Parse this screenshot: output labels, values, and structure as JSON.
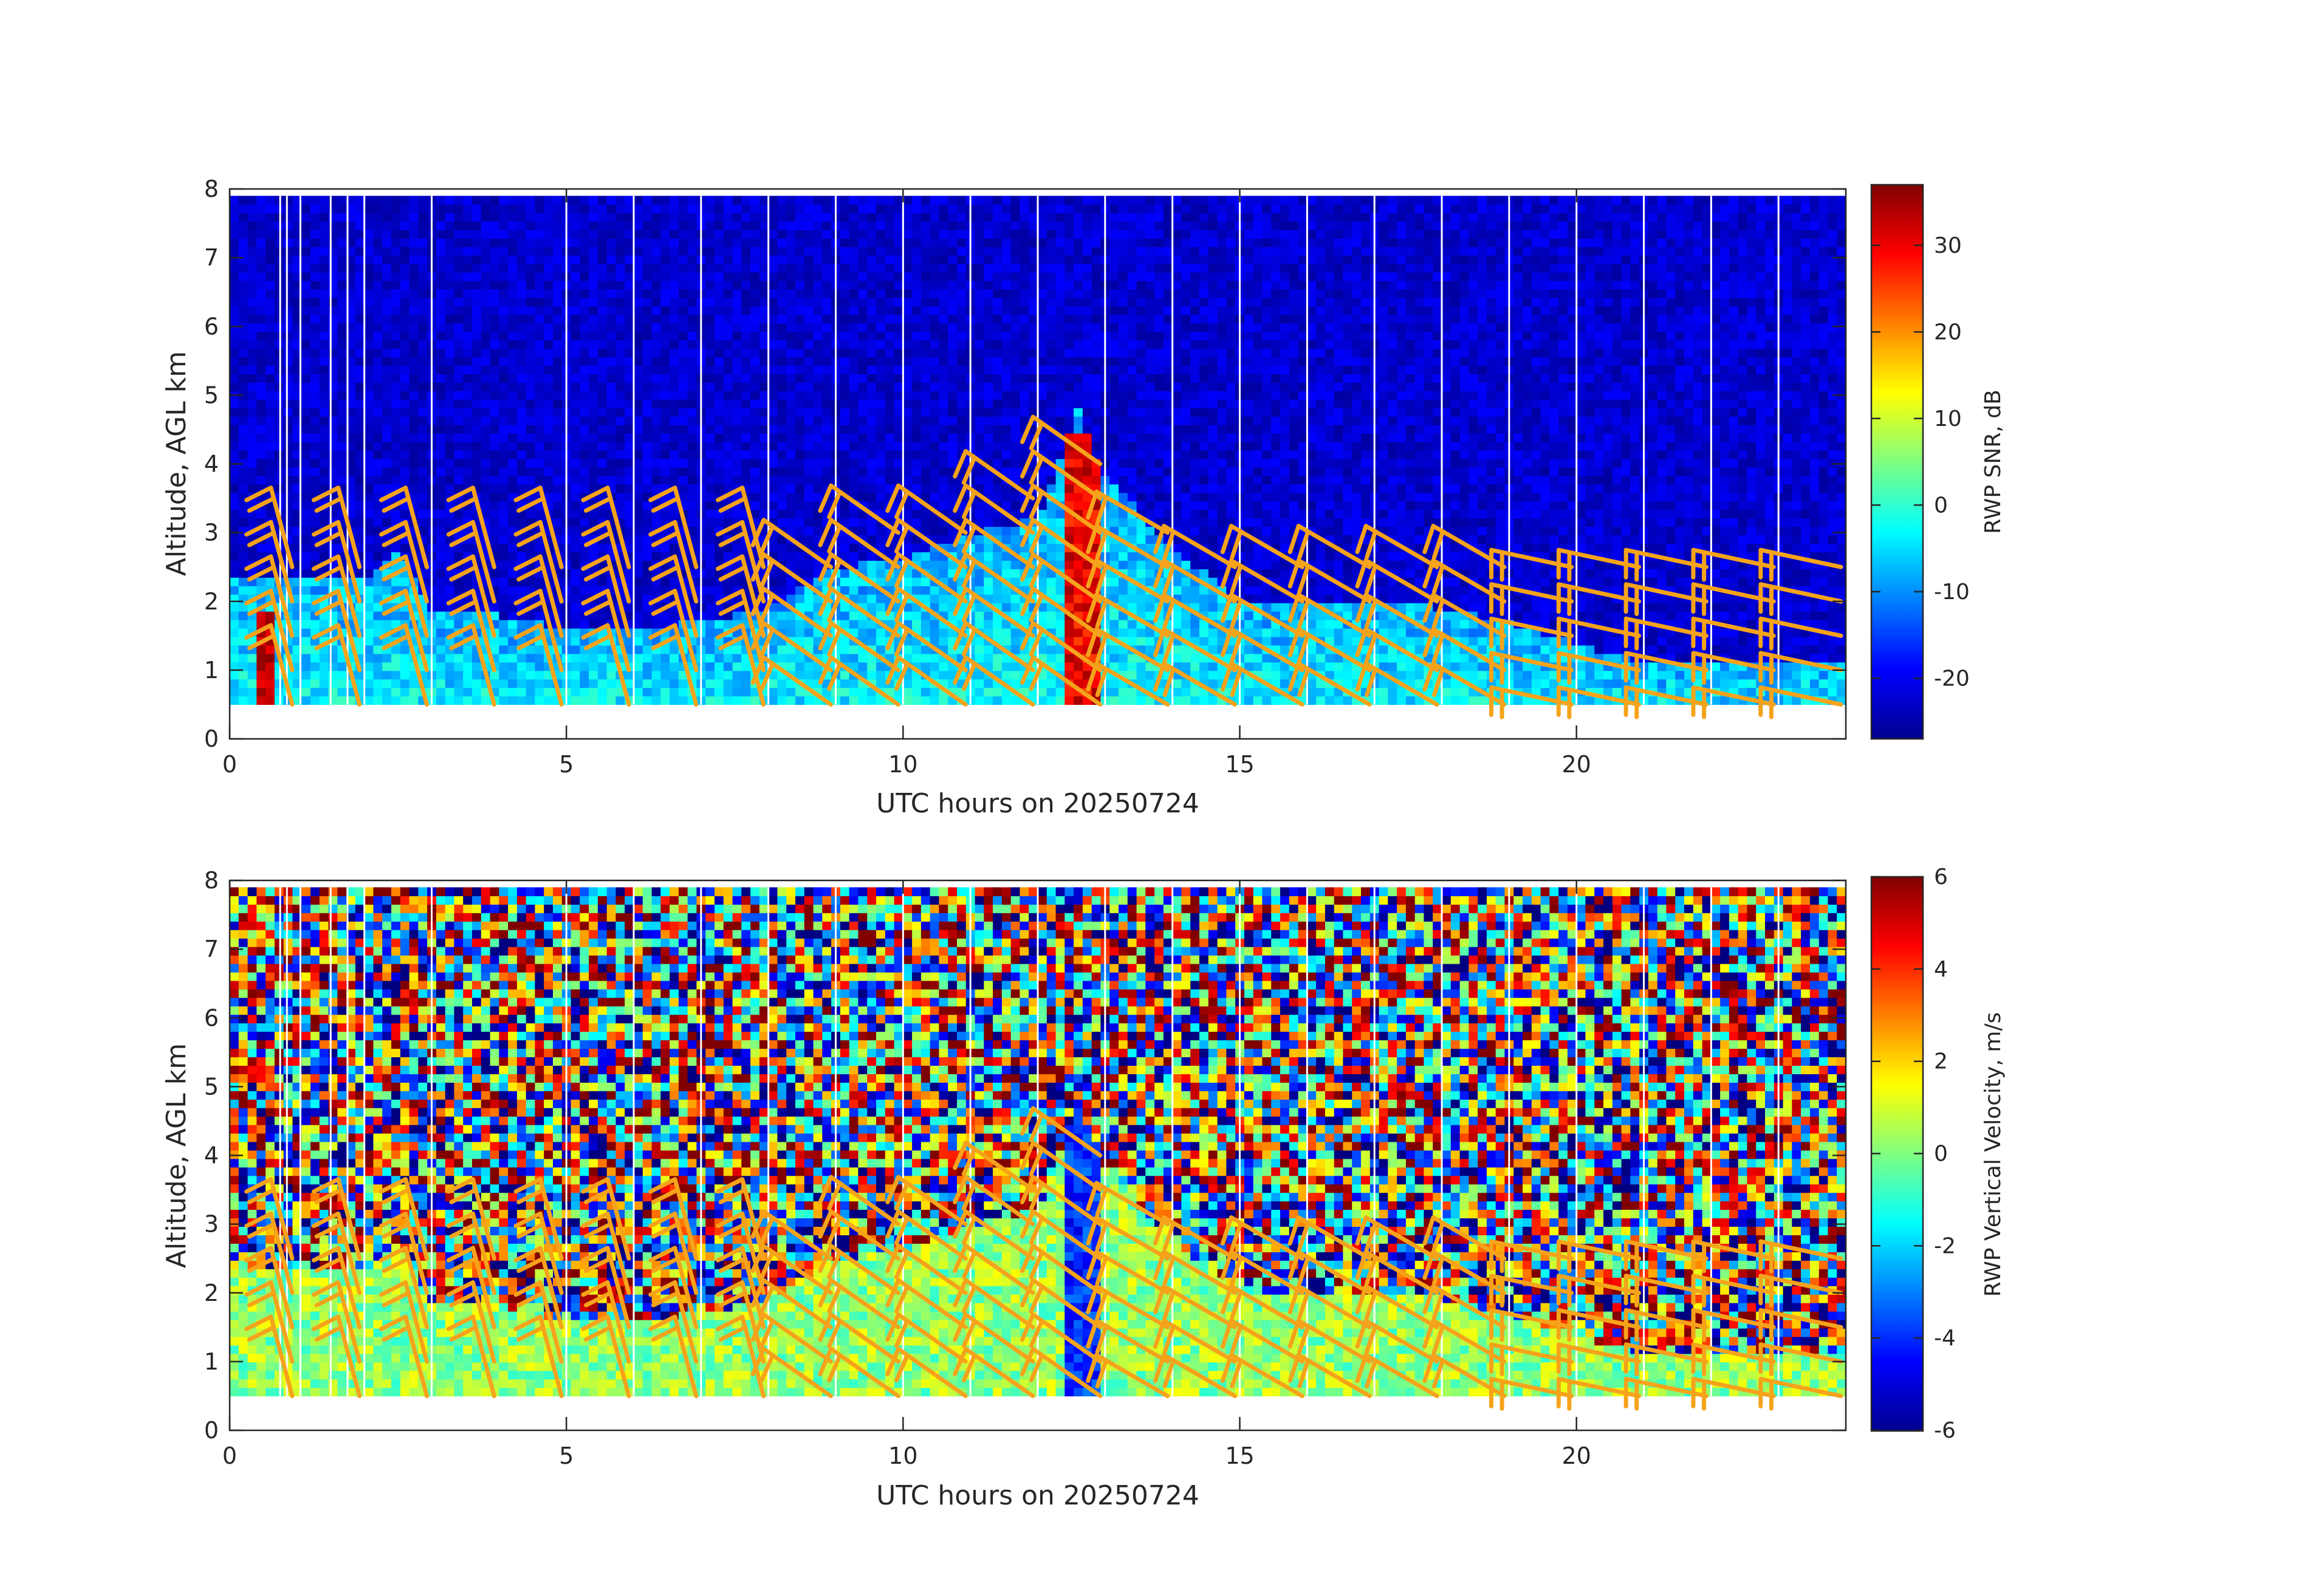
{
  "colors": {
    "colormap": "jet",
    "wind_barb": "#f5a31b",
    "gap_line": "#ffffff",
    "axis": "#262626",
    "background": "#ffffff"
  },
  "chart_data": [
    {
      "type": "heatmap",
      "title": "",
      "xlabel": "UTC hours on 20250724",
      "ylabel": "Altitude, AGL km",
      "xlim": [
        0,
        24
      ],
      "ylim": [
        0,
        8
      ],
      "xticks": [
        0,
        5,
        10,
        15,
        20
      ],
      "yticks": [
        0,
        1,
        2,
        3,
        4,
        5,
        6,
        7,
        8
      ],
      "data_altitude_range_km": [
        0.5,
        7.9
      ],
      "colorbar": {
        "label": "RWP SNR, dB",
        "range": [
          -27,
          37
        ],
        "ticks": [
          -20,
          -10,
          0,
          10,
          20,
          30
        ]
      },
      "boundary_layer_top_km": [
        {
          "x": 0,
          "y": 2.3
        },
        {
          "x": 1,
          "y": 2.4
        },
        {
          "x": 2,
          "y": 2.3
        },
        {
          "x": 2.5,
          "y": 2.7
        },
        {
          "x": 3,
          "y": 1.9
        },
        {
          "x": 4,
          "y": 1.8
        },
        {
          "x": 5,
          "y": 1.6
        },
        {
          "x": 6,
          "y": 1.6
        },
        {
          "x": 7,
          "y": 1.7
        },
        {
          "x": 8,
          "y": 1.9
        },
        {
          "x": 9,
          "y": 2.5
        },
        {
          "x": 10,
          "y": 2.6
        },
        {
          "x": 11,
          "y": 3.0
        },
        {
          "x": 12,
          "y": 3.2
        },
        {
          "x": 12.6,
          "y": 4.8
        },
        {
          "x": 13,
          "y": 3.8
        },
        {
          "x": 14,
          "y": 2.8
        },
        {
          "x": 15,
          "y": 2.0
        },
        {
          "x": 16,
          "y": 2.0
        },
        {
          "x": 17,
          "y": 2.0
        },
        {
          "x": 18,
          "y": 1.9
        },
        {
          "x": 19,
          "y": 1.7
        },
        {
          "x": 20,
          "y": 1.4
        },
        {
          "x": 21,
          "y": 1.1
        },
        {
          "x": 22,
          "y": 1.1
        },
        {
          "x": 23,
          "y": 1.1
        },
        {
          "x": 24,
          "y": 1.1
        }
      ],
      "data_gaps_hours": [
        0.75,
        0.85,
        1.05,
        1.5,
        1.75,
        2.0,
        3.0,
        5.0,
        6.0,
        7.0,
        8.0,
        9.0,
        10.0,
        11.0,
        12.0,
        13.0,
        14.0,
        15.0,
        16.0,
        17.0,
        18.0,
        19.0,
        20.0,
        21.0,
        22.0,
        23.0
      ],
      "wind_barbs": {
        "times_hours": [
          1.0,
          2.0,
          3.0,
          4.0,
          5.0,
          6.0,
          7.0,
          8.0,
          9.0,
          10.0,
          11.0,
          12.0,
          13.0,
          14.0,
          15.0,
          16.0,
          17.0,
          18.0,
          19.0,
          20.0,
          21.0,
          22.0,
          23.0,
          24.0
        ],
        "heights_km": [
          0.5,
          1.0,
          1.5,
          2.0,
          2.5,
          3.0,
          3.5,
          4.0
        ]
      }
    },
    {
      "type": "heatmap",
      "title": "",
      "xlabel": "UTC hours on 20250724",
      "ylabel": "Altitude, AGL km",
      "xlim": [
        0,
        24
      ],
      "ylim": [
        0,
        8
      ],
      "xticks": [
        0,
        5,
        10,
        15,
        20
      ],
      "yticks": [
        0,
        1,
        2,
        3,
        4,
        5,
        6,
        7,
        8
      ],
      "data_altitude_range_km": [
        0.5,
        7.9
      ],
      "colorbar": {
        "label": "RWP Vertical Velocity, m/s",
        "range": [
          -6,
          6
        ],
        "ticks": [
          -6,
          -4,
          -2,
          0,
          2,
          4,
          6
        ]
      },
      "boundary_layer_top_km": [
        {
          "x": 0,
          "y": 2.3
        },
        {
          "x": 1,
          "y": 2.4
        },
        {
          "x": 2,
          "y": 2.3
        },
        {
          "x": 2.5,
          "y": 2.7
        },
        {
          "x": 3,
          "y": 1.9
        },
        {
          "x": 4,
          "y": 1.8
        },
        {
          "x": 5,
          "y": 1.6
        },
        {
          "x": 6,
          "y": 1.6
        },
        {
          "x": 7,
          "y": 1.7
        },
        {
          "x": 8,
          "y": 1.9
        },
        {
          "x": 9,
          "y": 2.5
        },
        {
          "x": 10,
          "y": 2.6
        },
        {
          "x": 11,
          "y": 3.0
        },
        {
          "x": 12,
          "y": 3.2
        },
        {
          "x": 12.6,
          "y": 4.8
        },
        {
          "x": 13,
          "y": 3.8
        },
        {
          "x": 14,
          "y": 2.8
        },
        {
          "x": 15,
          "y": 2.0
        },
        {
          "x": 16,
          "y": 2.0
        },
        {
          "x": 17,
          "y": 2.0
        },
        {
          "x": 18,
          "y": 1.9
        },
        {
          "x": 19,
          "y": 1.7
        },
        {
          "x": 20,
          "y": 1.4
        },
        {
          "x": 21,
          "y": 1.1
        },
        {
          "x": 22,
          "y": 1.1
        },
        {
          "x": 23,
          "y": 1.1
        },
        {
          "x": 24,
          "y": 1.1
        }
      ],
      "data_gaps_hours": [
        0.75,
        0.85,
        1.05,
        1.5,
        1.75,
        2.0,
        3.0,
        5.0,
        6.0,
        7.0,
        8.0,
        9.0,
        10.0,
        11.0,
        12.0,
        13.0,
        14.0,
        15.0,
        16.0,
        17.0,
        18.0,
        19.0,
        20.0,
        21.0,
        22.0,
        23.0
      ],
      "wind_barbs": {
        "times_hours": [
          1.0,
          2.0,
          3.0,
          4.0,
          5.0,
          6.0,
          7.0,
          8.0,
          9.0,
          10.0,
          11.0,
          12.0,
          13.0,
          14.0,
          15.0,
          16.0,
          17.0,
          18.0,
          19.0,
          20.0,
          21.0,
          22.0,
          23.0,
          24.0
        ],
        "heights_km": [
          0.5,
          1.0,
          1.5,
          2.0,
          2.5,
          3.0,
          3.5,
          4.0
        ]
      }
    }
  ]
}
